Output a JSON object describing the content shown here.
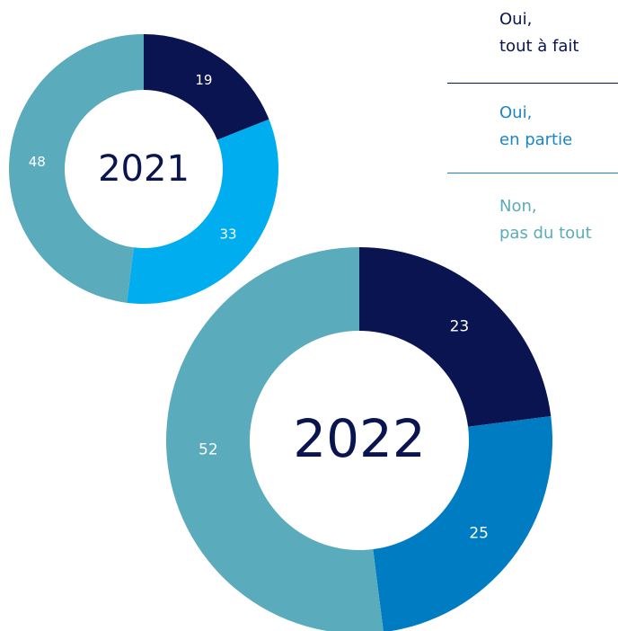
{
  "chart_data": [
    {
      "type": "donut",
      "center_label": "2021",
      "values": [
        19,
        33,
        48
      ],
      "colors": [
        "#0a1450",
        "#00aeef",
        "#5aabbb"
      ]
    },
    {
      "type": "donut",
      "center_label": "2022",
      "values": [
        23,
        25,
        52
      ],
      "colors": [
        "#0a1450",
        "#007cc3",
        "#5aabbb"
      ]
    }
  ],
  "legend": {
    "labels": [
      "Oui,\ntout à fait",
      "Oui,\nen partie",
      "Non,\npas du tout"
    ],
    "colors": [
      "#0a1450",
      "#1a86c7",
      "#5aabbb"
    ]
  }
}
